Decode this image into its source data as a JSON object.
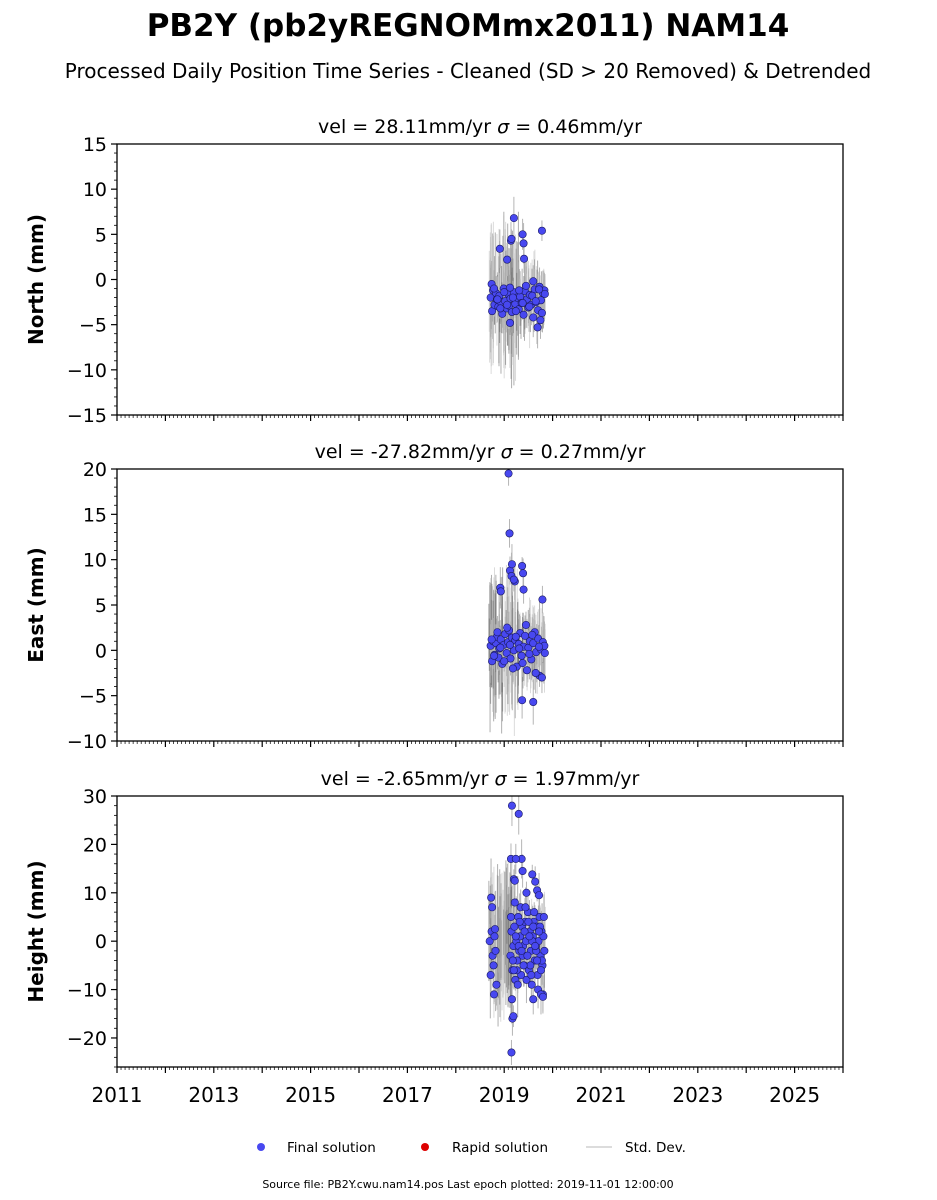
{
  "title": "PB2Y (pb2yREGNOMmx2011) NAM14",
  "subtitle": "Processed Daily Position Time Series - Cleaned (SD > 20 Removed) & Detrended",
  "footer": "Source file: PB2Y.cwu.nam14.pos  Last epoch plotted: 2019-11-01 12:00:00",
  "legend": {
    "final": "Final solution",
    "rapid": "Rapid solution",
    "std": "Std. Dev."
  },
  "colors": {
    "final": "#4848f0",
    "final_edge": "#1a1a60",
    "rapid": "#dd0000",
    "std": "#6e6e6e",
    "std_legend": "#d0d0d0"
  },
  "chart_data": [
    {
      "type": "scatter",
      "panel": "north",
      "title_prefix": "vel = 28.11mm/yr",
      "title_sigma": " = 0.46mm/yr",
      "ylabel": "North (mm)",
      "ylim": [
        -15,
        15
      ],
      "yticks": [
        -15,
        -10,
        -5,
        0,
        5,
        10,
        15
      ],
      "xlim": [
        2011.0,
        2026.0
      ],
      "series": [
        {
          "name": "Final solution",
          "x": [
            2018.72,
            2018.75,
            2018.77,
            2018.8,
            2018.83,
            2018.85,
            2018.88,
            2018.9,
            2018.93,
            2018.96,
            2018.99,
            2019.02,
            2019.05,
            2019.08,
            2019.1,
            2019.13,
            2019.16,
            2019.2,
            2019.23,
            2019.26,
            2019.3,
            2019.33,
            2019.36,
            2019.4,
            2019.43,
            2019.47,
            2019.5,
            2019.53,
            2019.56,
            2019.6,
            2019.63,
            2019.66,
            2019.7,
            2019.73,
            2019.76,
            2019.8,
            2019.83,
            2018.74,
            2018.79,
            2018.86,
            2018.92,
            2019.0,
            2019.06,
            2019.12,
            2019.18,
            2019.24,
            2019.31,
            2019.38,
            2019.45,
            2019.52,
            2019.58,
            2019.65,
            2019.72,
            2019.78,
            2019.84,
            2018.91,
            2019.14,
            2019.15,
            2019.2,
            2019.38,
            2019.4,
            2019.41,
            2019.06,
            2019.78,
            2019.69,
            2019.12,
            2019.75,
            2019.6
          ],
          "y": [
            -2.0,
            -3.5,
            -1.2,
            -2.8,
            -1.5,
            -2.2,
            -3.0,
            -1.8,
            -2.5,
            -3.8,
            -1.0,
            -2.4,
            -3.2,
            -1.6,
            -2.9,
            -2.1,
            -3.6,
            -1.4,
            -2.7,
            -2.0,
            -3.3,
            -1.9,
            -2.6,
            -3.9,
            -1.3,
            -2.2,
            -3.1,
            -1.7,
            -2.8,
            -4.2,
            -1.1,
            -2.5,
            -3.4,
            -0.8,
            -2.3,
            -1.5,
            -1.2,
            -0.5,
            -1.0,
            -2.2,
            -3.2,
            -1.4,
            -2.8,
            -0.9,
            -2.0,
            -3.5,
            -1.2,
            -2.6,
            -0.7,
            -3.0,
            -1.8,
            -2.4,
            -1.1,
            -3.7,
            -1.6,
            3.4,
            4.3,
            4.5,
            6.8,
            5.0,
            4.0,
            2.3,
            2.2,
            5.4,
            -5.3,
            -4.8,
            -4.5,
            -0.2
          ]
        }
      ]
    },
    {
      "type": "scatter",
      "panel": "east",
      "title_prefix": "vel = -27.82mm/yr",
      "title_sigma": " = 0.27mm/yr",
      "ylabel": "East (mm)",
      "ylim": [
        -10,
        20
      ],
      "yticks": [
        -10,
        -5,
        0,
        5,
        10,
        15,
        20
      ],
      "xlim": [
        2011.0,
        2026.0
      ],
      "series": [
        {
          "name": "Final solution",
          "x": [
            2018.72,
            2018.75,
            2018.77,
            2018.8,
            2018.83,
            2018.85,
            2018.88,
            2018.9,
            2018.93,
            2018.96,
            2018.99,
            2019.02,
            2019.05,
            2019.08,
            2019.1,
            2019.13,
            2019.16,
            2019.2,
            2019.23,
            2019.26,
            2019.3,
            2019.33,
            2019.36,
            2019.4,
            2019.43,
            2019.47,
            2019.5,
            2019.53,
            2019.56,
            2019.6,
            2019.63,
            2019.66,
            2019.7,
            2019.73,
            2019.76,
            2019.8,
            2019.83,
            2018.74,
            2018.79,
            2018.86,
            2018.92,
            2019.0,
            2019.06,
            2019.12,
            2019.18,
            2019.24,
            2019.31,
            2019.38,
            2019.45,
            2019.52,
            2019.58,
            2019.65,
            2019.72,
            2019.78,
            2019.84,
            2019.09,
            2019.11,
            2019.12,
            2019.16,
            2018.92,
            2018.93,
            2019.22,
            2019.37,
            2019.39,
            2019.4,
            2019.37,
            2019.6,
            2019.79,
            2019.15,
            2019.2
          ],
          "y": [
            0.5,
            -1.2,
            1.0,
            -0.5,
            0.8,
            1.5,
            -0.8,
            0.2,
            1.2,
            -1.5,
            0.6,
            1.8,
            -0.3,
            0.9,
            2.2,
            -0.9,
            1.4,
            0.0,
            1.1,
            -1.8,
            0.7,
            1.9,
            -0.6,
            0.4,
            1.6,
            -2.2,
            0.3,
            1.0,
            -1.0,
            0.8,
            2.0,
            -0.2,
            1.3,
            -2.8,
            0.1,
            0.9,
            0.5,
            1.2,
            -0.6,
            2.0,
            0.3,
            -1.2,
            2.5,
            0.6,
            -2.0,
            1.5,
            0.2,
            -1.4,
            2.8,
            -0.4,
            1.7,
            -2.5,
            0.4,
            -3.0,
            -0.3,
            19.5,
            12.9,
            8.8,
            9.5,
            6.9,
            6.5,
            7.6,
            9.3,
            8.5,
            6.7,
            -5.5,
            -5.7,
            5.6,
            8.2,
            7.8
          ]
        }
      ]
    },
    {
      "type": "scatter",
      "panel": "height",
      "title_prefix": "vel = -2.65mm/yr",
      "title_sigma": " = 1.97mm/yr",
      "ylabel": "Height (mm)",
      "ylim": [
        -26,
        30
      ],
      "yticks": [
        -20,
        -10,
        0,
        10,
        20,
        30
      ],
      "xlim": [
        2011.0,
        2026.0
      ],
      "series": [
        {
          "name": "Final solution",
          "x": [
            2018.7,
            2018.72,
            2018.74,
            2018.76,
            2018.78,
            2018.8,
            2018.82,
            2018.84,
            2019.13,
            2019.15,
            2019.17,
            2019.19,
            2019.21,
            2019.23,
            2019.25,
            2019.27,
            2019.29,
            2019.31,
            2019.33,
            2019.35,
            2019.37,
            2019.39,
            2019.41,
            2019.43,
            2019.45,
            2019.47,
            2019.49,
            2019.51,
            2019.53,
            2019.55,
            2019.57,
            2019.59,
            2019.61,
            2019.63,
            2019.65,
            2019.67,
            2019.69,
            2019.71,
            2019.73,
            2019.75,
            2019.77,
            2019.79,
            2019.81,
            2019.83,
            2019.14,
            2019.18,
            2019.22,
            2019.26,
            2019.3,
            2019.34,
            2019.38,
            2019.42,
            2019.46,
            2019.5,
            2019.54,
            2019.58,
            2019.62,
            2019.66,
            2019.7,
            2019.74,
            2019.78,
            2019.82,
            2019.16,
            2019.2,
            2019.24,
            2019.28,
            2019.32,
            2019.36,
            2019.4,
            2019.44,
            2019.48,
            2019.52,
            2019.56,
            2019.6,
            2019.64,
            2019.68,
            2019.72,
            2019.76,
            2019.8,
            2018.73,
            2018.75,
            2018.79,
            2018.81,
            2019.16,
            2019.3,
            2019.36,
            2019.14,
            2019.2,
            2019.22,
            2019.24,
            2019.38,
            2019.46,
            2019.58,
            2019.64,
            2019.68,
            2019.72,
            2019.15,
            2019.17,
            2019.19,
            2019.6,
            2019.76,
            2019.8
          ],
          "y": [
            0.0,
            -7.0,
            2.0,
            -3.0,
            -5.0,
            1.0,
            -2.0,
            -9.0,
            -3.0,
            2.0,
            -6.0,
            -1.0,
            3.0,
            -8.0,
            0.0,
            -4.0,
            5.0,
            -2.0,
            1.0,
            -7.0,
            3.0,
            -1.0,
            -5.0,
            4.0,
            0.0,
            -3.0,
            6.0,
            -6.0,
            2.0,
            -2.0,
            -9.0,
            1.0,
            4.0,
            -4.0,
            -1.0,
            3.0,
            -7.0,
            0.0,
            5.0,
            -3.0,
            2.0,
            -5.0,
            1.0,
            -2.0,
            5.0,
            -4.0,
            8.0,
            -6.0,
            -1.0,
            7.0,
            -3.0,
            2.0,
            -8.0,
            4.0,
            -5.0,
            0.0,
            6.0,
            -2.0,
            -10.0,
            3.0,
            -4.0,
            5.0,
            -12.0,
            -6.0,
            1.0,
            -9.0,
            4.0,
            -2.0,
            -5.0,
            7.0,
            -3.0,
            1.0,
            -7.0,
            3.0,
            -1.0,
            -4.0,
            2.0,
            -6.0,
            -11.0,
            9.0,
            7.0,
            -11.0,
            2.5,
            28.0,
            26.3,
            17.0,
            17.0,
            12.8,
            12.5,
            17.0,
            14.5,
            10.0,
            13.8,
            12.3,
            10.5,
            9.5,
            -23.0,
            -16.0,
            -15.5,
            -12.0,
            -11.0,
            -11.5
          ]
        }
      ]
    }
  ],
  "xticks": [
    "2011",
    "2013",
    "2015",
    "2017",
    "2019",
    "2021",
    "2023",
    "2025"
  ],
  "sigma_symbol": "σ"
}
